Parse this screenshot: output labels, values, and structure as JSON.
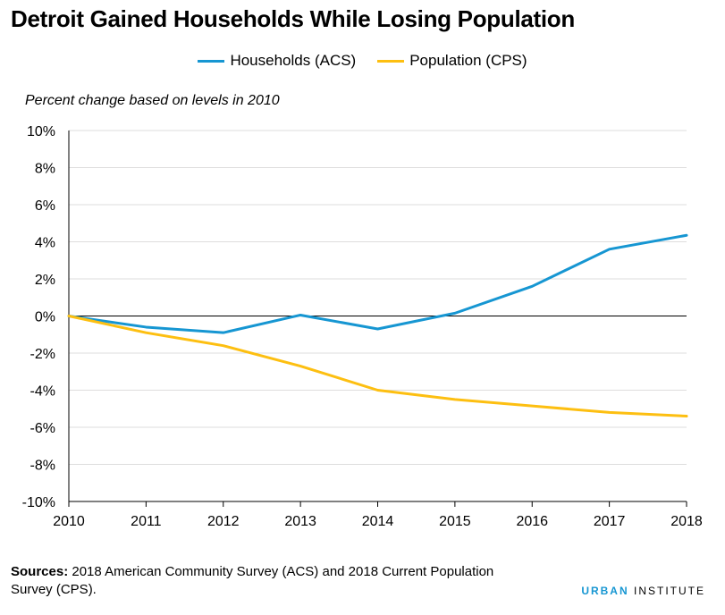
{
  "header": {
    "title": "Detroit Gained Households While Losing Population"
  },
  "footer": {
    "sources_label": "Sources:",
    "sources_text": " 2018 American Community Survey (ACS) and 2018 Current Population Survey (CPS).",
    "brand_part1": "URBAN",
    "brand_part2": " INSTITUTE"
  },
  "chart_data": {
    "type": "line",
    "title": "Detroit Gained Households While Losing Population",
    "subtitle": "Percent change based on levels in 2010",
    "x": [
      2010,
      2011,
      2012,
      2013,
      2014,
      2015,
      2016,
      2017,
      2018
    ],
    "x_ticks": [
      "2010",
      "2011",
      "2012",
      "2013",
      "2014",
      "2015",
      "2016",
      "2017",
      "2018"
    ],
    "y_ticks": [
      "10%",
      "8%",
      "6%",
      "4%",
      "2%",
      "0%",
      "-2%",
      "-4%",
      "-6%",
      "-8%",
      "-10%"
    ],
    "y_tick_values": [
      10,
      8,
      6,
      4,
      2,
      0,
      -2,
      -4,
      -6,
      -8,
      -10
    ],
    "ylim": [
      -10,
      10
    ],
    "xlim": [
      2010,
      2018
    ],
    "legend_position": "top-center",
    "grid": true,
    "series": [
      {
        "name": "Households (ACS)",
        "color": "#1696d2",
        "values": [
          0.0,
          -0.6,
          -0.9,
          0.05,
          -0.7,
          0.15,
          1.6,
          3.6,
          4.35
        ]
      },
      {
        "name": "Population (CPS)",
        "color": "#fdbf11",
        "values": [
          0.0,
          -0.9,
          -1.6,
          -2.7,
          -4.0,
          -4.5,
          -4.85,
          -5.2,
          -5.4
        ]
      }
    ]
  }
}
